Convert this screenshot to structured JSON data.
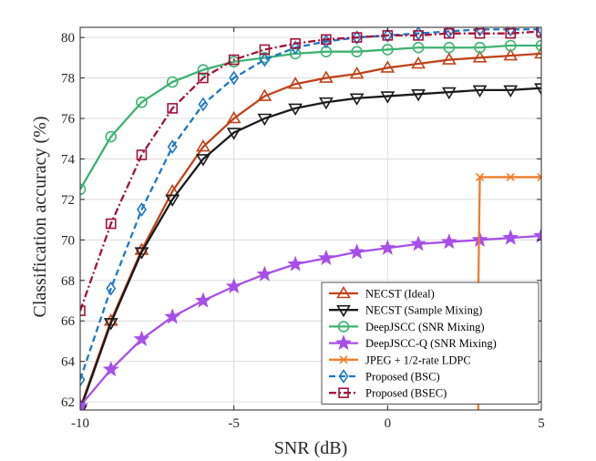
{
  "chart_data": {
    "type": "line",
    "title": "",
    "xlabel": "SNR (dB)",
    "ylabel": "Classification accuracy (%)",
    "xlim": [
      -10,
      5
    ],
    "ylim": [
      61.6,
      80.5
    ],
    "xticks": [
      -10,
      -5,
      0,
      5
    ],
    "yticks": [
      62,
      64,
      66,
      68,
      70,
      72,
      74,
      76,
      78,
      80
    ],
    "grid": true,
    "legend_position": "bottom-right",
    "x": [
      -10,
      -9,
      -8,
      -7,
      -6,
      -5,
      -4,
      -3,
      -2,
      -1,
      0,
      1,
      2,
      3,
      4,
      5
    ],
    "series": [
      {
        "name": "NECST (Ideal)",
        "color": "#c0421a",
        "dash": "solid",
        "marker": "triangle-up",
        "values": [
          61.7,
          66.0,
          69.5,
          72.4,
          74.6,
          76.0,
          77.1,
          77.7,
          78.0,
          78.2,
          78.5,
          78.7,
          78.9,
          79.0,
          79.1,
          79.2
        ]
      },
      {
        "name": "NECST (Sample Mixing)",
        "color": "#1a1a1a",
        "dash": "solid",
        "marker": "triangle-down",
        "values": [
          61.6,
          65.9,
          69.4,
          72.0,
          74.0,
          75.3,
          76.0,
          76.5,
          76.8,
          77.0,
          77.1,
          77.2,
          77.3,
          77.4,
          77.4,
          77.5
        ]
      },
      {
        "name": "DeepJSCC (SNR Mixing)",
        "color": "#3cb371",
        "dash": "solid",
        "marker": "circle",
        "values": [
          72.5,
          75.1,
          76.8,
          77.8,
          78.4,
          78.8,
          79.0,
          79.2,
          79.3,
          79.3,
          79.4,
          79.5,
          79.5,
          79.5,
          79.6,
          79.6
        ]
      },
      {
        "name": "DeepJSCC-Q (SNR Mixing)",
        "color": "#a64fe8",
        "dash": "solid",
        "marker": "star",
        "values": [
          61.8,
          63.6,
          65.1,
          66.2,
          67.0,
          67.7,
          68.3,
          68.8,
          69.1,
          69.4,
          69.6,
          69.8,
          69.9,
          70.0,
          70.1,
          70.2
        ]
      },
      {
        "name": "JPEG + 1/2-rate LDPC",
        "color": "#f07d2c",
        "dash": "solid",
        "marker": "x",
        "x": [
          2.95,
          2.95,
          3,
          4,
          5
        ],
        "values": [
          61.6,
          67.5,
          73.1,
          73.1,
          73.1
        ]
      },
      {
        "name": "Proposed (BSC)",
        "color": "#1f77c4",
        "dash": "dash",
        "marker": "diamond",
        "values": [
          63.1,
          67.6,
          71.5,
          74.6,
          76.7,
          78.0,
          78.9,
          79.5,
          79.8,
          80.0,
          80.1,
          80.2,
          80.3,
          80.4,
          80.4,
          80.4
        ]
      },
      {
        "name": "Proposed (BSEC)",
        "color": "#a3133a",
        "dash": "dashdot",
        "marker": "square",
        "values": [
          66.5,
          70.8,
          74.2,
          76.5,
          78.0,
          78.9,
          79.4,
          79.7,
          79.9,
          80.0,
          80.1,
          80.1,
          80.2,
          80.2,
          80.2,
          80.3
        ]
      }
    ]
  }
}
